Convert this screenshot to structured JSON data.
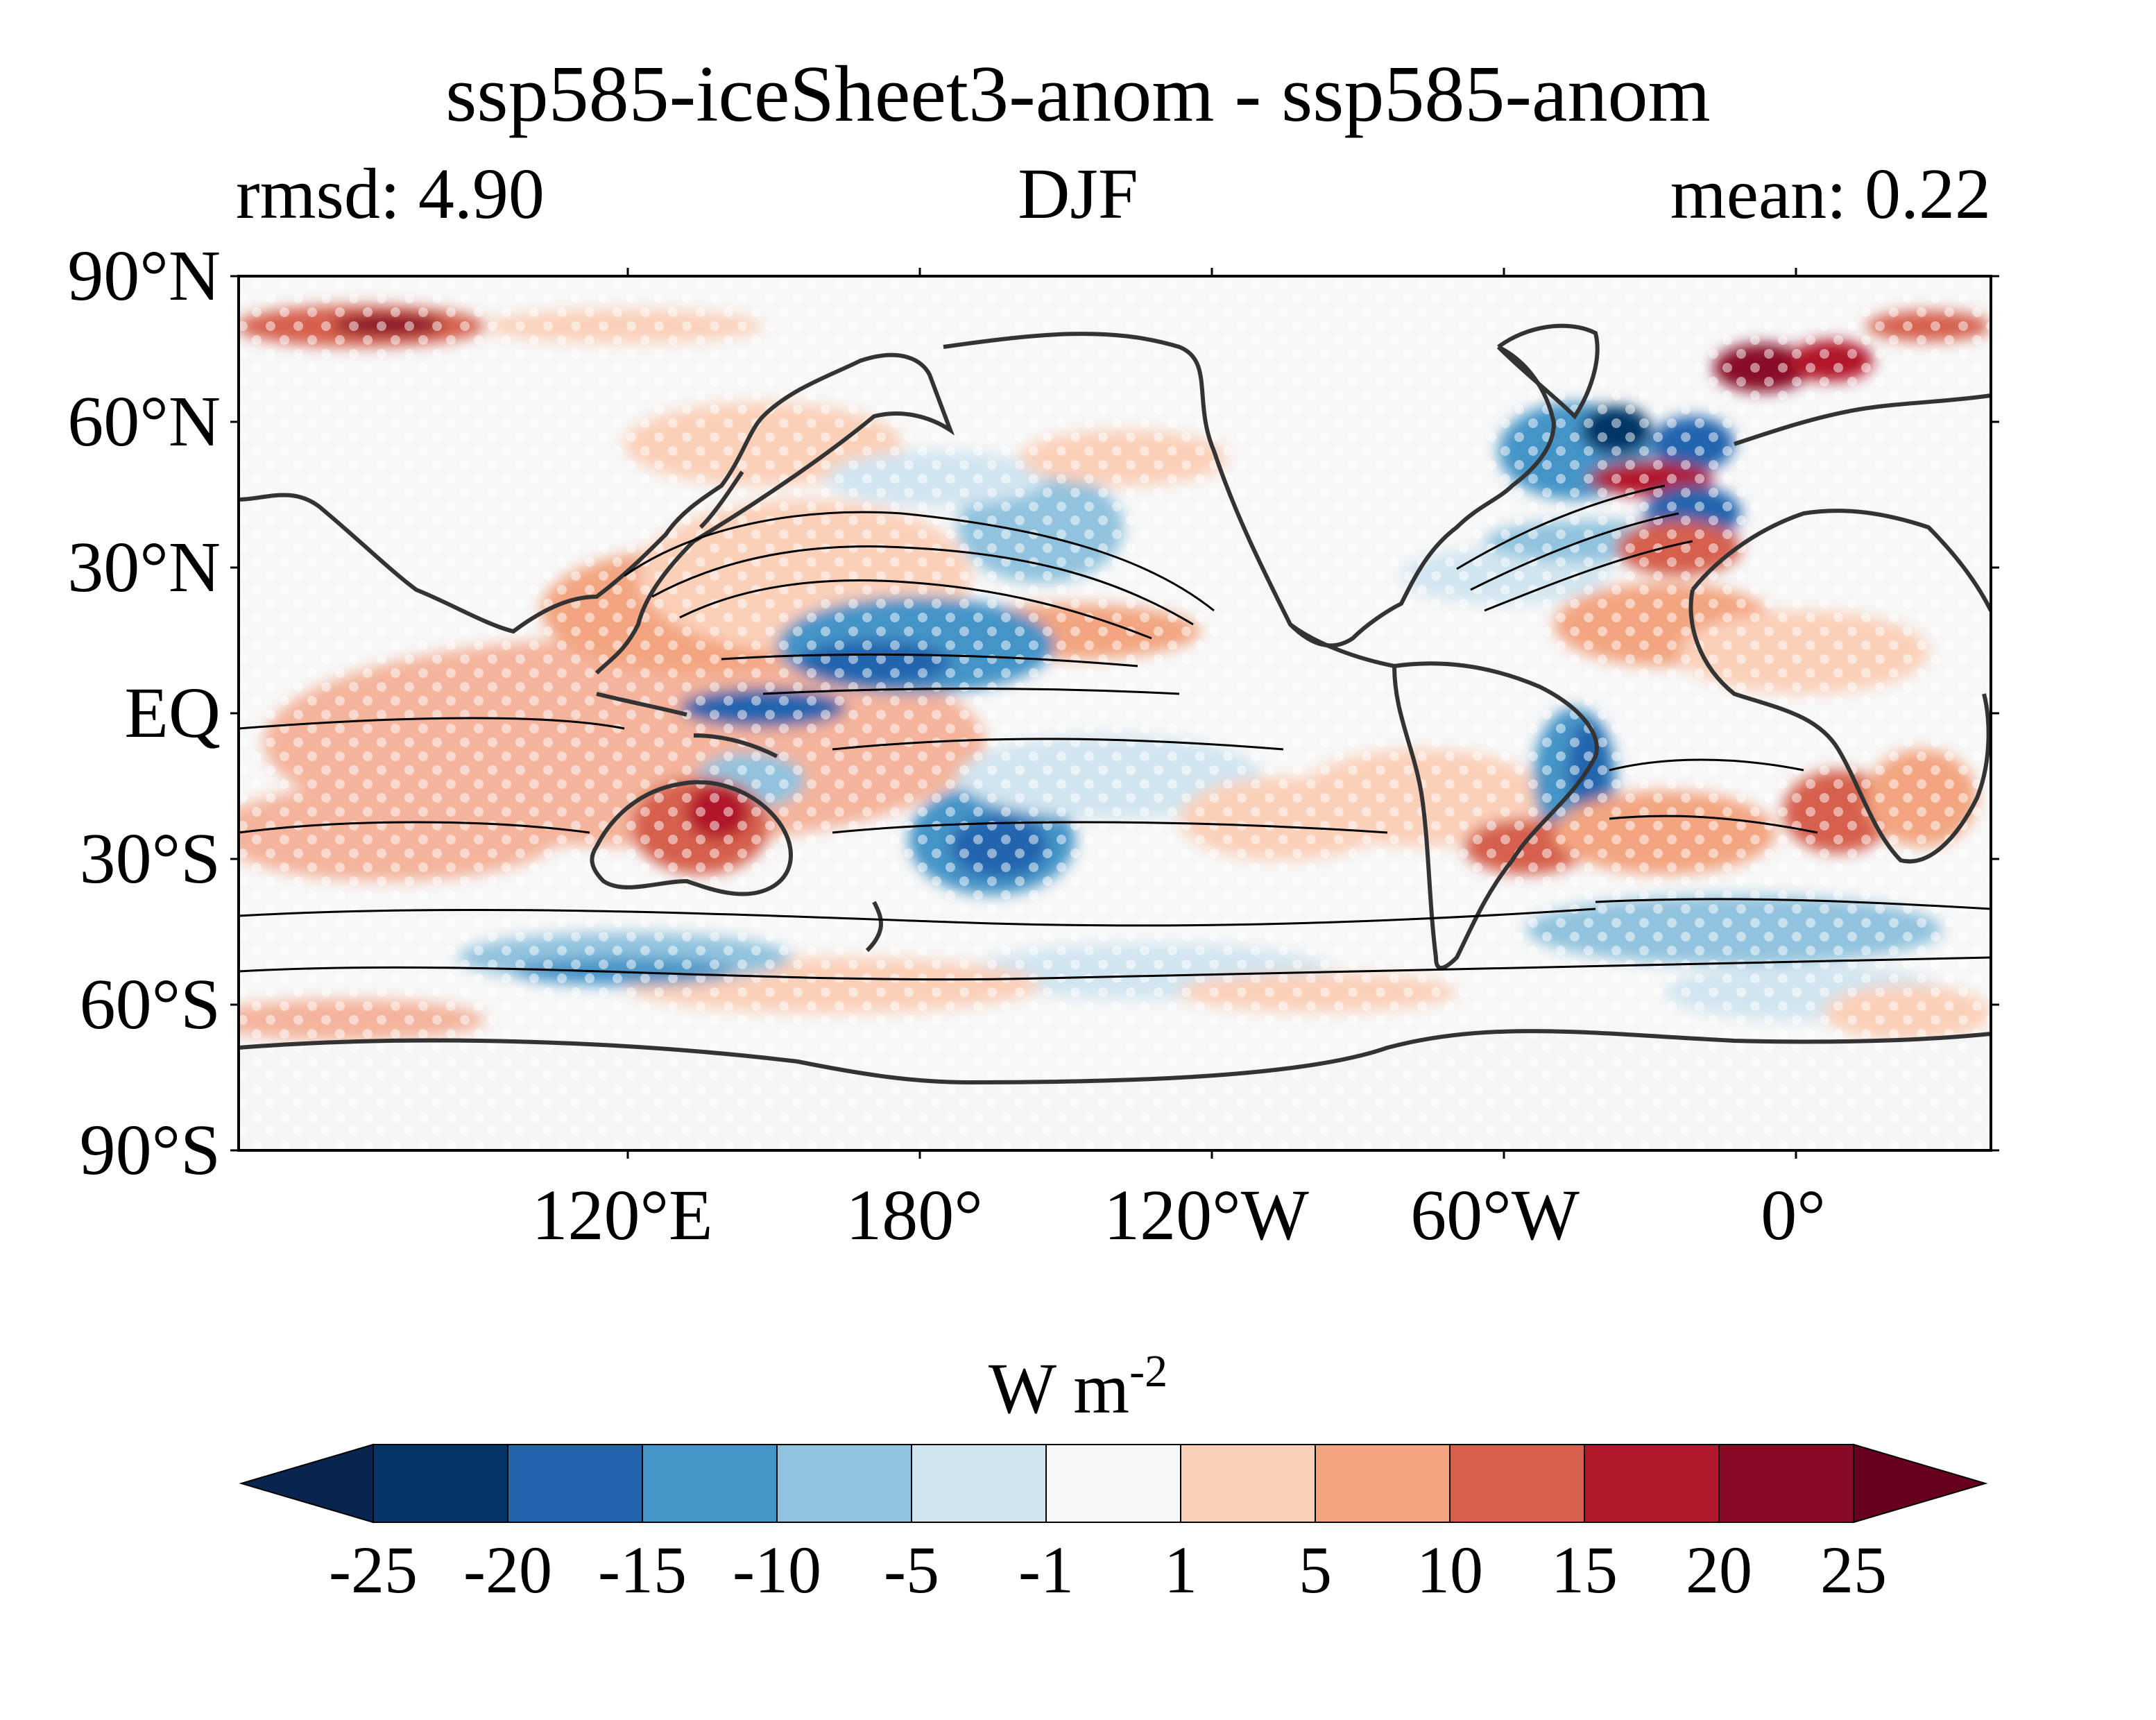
{
  "map": {
    "title": "ssp585-iceSheet3-anom - ssp585-anom",
    "left_subtitle": "rmsd: 4.90",
    "center_subtitle": "DJF",
    "right_subtitle": "mean: 0.22",
    "projection": "PlateCarree, central longitude 150°E",
    "land_fill": "#f5f5f5",
    "coastline_color": "#333333",
    "contour_color": "#000000",
    "stippling": "white dots (significance)",
    "lat_labels": [
      "90°N",
      "60°N",
      "30°N",
      "EQ",
      "30°S",
      "60°S",
      "90°S"
    ],
    "lon_labels": [
      "120°E",
      "180°",
      "120°W",
      "60°W",
      "0°"
    ]
  },
  "colorbar": {
    "unit_base": "W m",
    "unit_exp": "-2",
    "ticks": [
      "-25",
      "-20",
      "-15",
      "-10",
      "-5",
      "-1",
      "1",
      "5",
      "10",
      "15",
      "20",
      "25"
    ],
    "colors": [
      "#08254f",
      "#063466",
      "#2265ae",
      "#4594c7",
      "#91c3de",
      "#d1e5f0",
      "#f7f7f7",
      "#fbd0b9",
      "#f3a581",
      "#d6604d",
      "#b2182b",
      "#880a26",
      "#67001f"
    ],
    "extend": "both"
  },
  "anomaly_regions": [
    {
      "name": "north-atlantic-subpolar",
      "sign": "negative",
      "magnitude": "-20 to -25"
    },
    {
      "name": "north-atlantic-gulf-stream",
      "sign": "positive",
      "magnitude": "15 to 25"
    },
    {
      "name": "nordic-seas",
      "sign": "positive",
      "magnitude": "15 to 25"
    },
    {
      "name": "arctic-siberian-coast",
      "sign": "positive",
      "magnitude": "15 to 25"
    },
    {
      "name": "tropical-north-pacific",
      "sign": "negative",
      "magnitude": "-5 to -15"
    },
    {
      "name": "kuroshio-extension",
      "sign": "positive",
      "magnitude": "5 to 10"
    },
    {
      "name": "south-pacific-central",
      "sign": "negative",
      "magnitude": "-10 to -15"
    },
    {
      "name": "central-australia",
      "sign": "positive",
      "magnitude": "10 to 20"
    },
    {
      "name": "eastern-brazil",
      "sign": "negative",
      "magnitude": "-15 to -20"
    },
    {
      "name": "indian-ocean-south",
      "sign": "positive",
      "magnitude": "5 to 10"
    }
  ]
}
